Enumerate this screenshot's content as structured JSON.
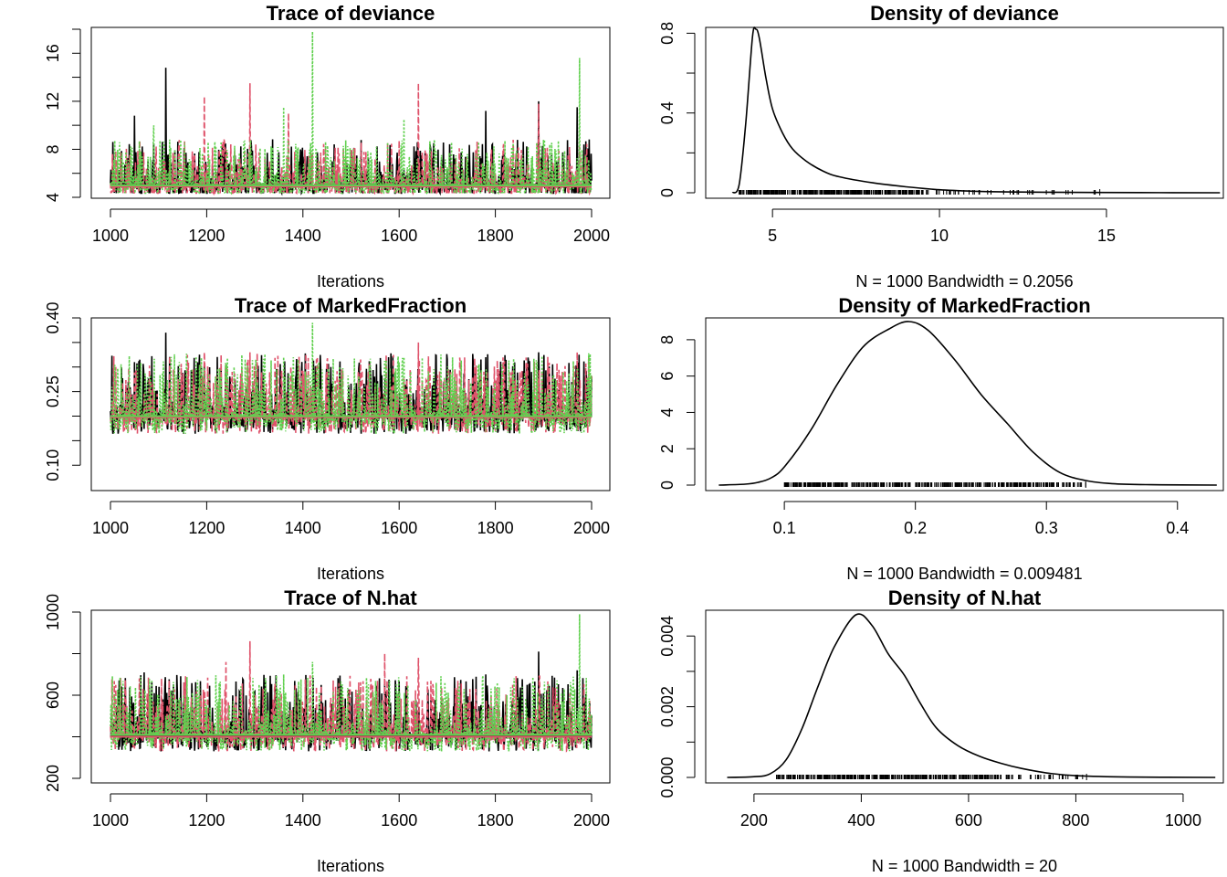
{
  "chart_data": [
    {
      "type": "line",
      "title": "Trace of deviance",
      "xlabel": "Iterations",
      "ylabel": "",
      "xlim": [
        1000,
        2000
      ],
      "ylim": [
        4,
        18
      ],
      "xticks": [
        1000,
        1200,
        1400,
        1600,
        1800,
        2000
      ],
      "yticks": [
        4,
        8,
        12,
        16
      ],
      "yticks_minor": [
        6,
        10,
        14,
        18
      ],
      "series": [
        {
          "color": "#000000",
          "dash": "solid",
          "base": 5.0,
          "spread": 1.2,
          "max": 14.8,
          "peaks": [
            [
              1115,
              14.8
            ],
            [
              1890,
              12.0
            ],
            [
              1970,
              11.5
            ],
            [
              1780,
              11.2
            ],
            [
              1050,
              10.8
            ]
          ]
        },
        {
          "color": "#DF536B",
          "dash": "dashed",
          "base": 5.0,
          "spread": 1.2,
          "max": 13.5,
          "peaks": [
            [
              1290,
              13.5
            ],
            [
              1640,
              13.5
            ],
            [
              1195,
              12.4
            ],
            [
              1890,
              11.8
            ],
            [
              1370,
              11.0
            ]
          ]
        },
        {
          "color": "#61D04F",
          "dash": "dotted",
          "base": 5.0,
          "spread": 1.2,
          "max": 17.8,
          "peaks": [
            [
              1420,
              17.8
            ],
            [
              1975,
              15.6
            ],
            [
              1360,
              11.5
            ],
            [
              1610,
              10.5
            ],
            [
              1090,
              10.0
            ]
          ]
        }
      ],
      "smooth": [
        {
          "color": "#000000",
          "y": 5.0
        },
        {
          "color": "#DF536B",
          "y": 4.9
        },
        {
          "color": "#61D04F",
          "y": 5.0
        }
      ]
    },
    {
      "type": "line",
      "title": "Density of deviance",
      "xlabel": "N = 1000   Bandwidth = 0.2056",
      "ylabel": "",
      "xlim": [
        3.0,
        18.5
      ],
      "ylim": [
        0,
        0.82
      ],
      "xticks": [
        5,
        10,
        15
      ],
      "yticks": [
        0.0,
        0.4,
        0.8
      ],
      "yticks_minor": [
        0.2,
        0.6
      ],
      "curve": {
        "x": [
          3.8,
          4.0,
          4.2,
          4.4,
          4.5,
          4.6,
          4.8,
          5.0,
          5.3,
          5.6,
          6.0,
          6.5,
          7.0,
          8.0,
          9.0,
          10.0,
          11.0,
          12.0,
          14.0,
          16.0,
          18.4
        ],
        "y": [
          0.0,
          0.04,
          0.35,
          0.78,
          0.82,
          0.78,
          0.58,
          0.42,
          0.3,
          0.22,
          0.16,
          0.11,
          0.08,
          0.05,
          0.03,
          0.015,
          0.008,
          0.004,
          0.002,
          0.001,
          0.0
        ]
      },
      "rug": {
        "from": 4.0,
        "to": 14.8,
        "dense_to": 9.5
      }
    },
    {
      "type": "line",
      "title": "Trace of MarkedFraction",
      "xlabel": "Iterations",
      "ylabel": "",
      "xlim": [
        1000,
        2000
      ],
      "ylim": [
        0.08,
        0.4
      ],
      "xticks": [
        1000,
        1200,
        1400,
        1600,
        1800,
        2000
      ],
      "yticks": [
        0.1,
        0.25,
        0.4
      ],
      "yticks_labels": [
        "0.10",
        "0.25",
        "0.40"
      ],
      "yticks_minor": [
        0.15,
        0.2,
        0.3,
        0.35
      ],
      "series": [
        {
          "color": "#000000",
          "dash": "solid",
          "base": 0.2,
          "spread": 0.04,
          "max": 0.37,
          "peaks": [
            [
              1115,
              0.37
            ],
            [
              1890,
              0.33
            ],
            [
              1780,
              0.32
            ],
            [
              1050,
              0.31
            ]
          ]
        },
        {
          "color": "#DF536B",
          "dash": "dashed",
          "base": 0.2,
          "spread": 0.04,
          "max": 0.35,
          "peaks": [
            [
              1640,
              0.35
            ],
            [
              1195,
              0.33
            ],
            [
              1290,
              0.33
            ],
            [
              1970,
              0.33
            ]
          ]
        },
        {
          "color": "#61D04F",
          "dash": "dotted",
          "base": 0.2,
          "spread": 0.04,
          "max": 0.39,
          "peaks": [
            [
              1420,
              0.39
            ],
            [
              1360,
              0.32
            ],
            [
              1610,
              0.32
            ]
          ]
        }
      ],
      "smooth": [
        {
          "color": "#000000",
          "y": 0.2
        },
        {
          "color": "#DF536B",
          "y": 0.198
        },
        {
          "color": "#61D04F",
          "y": 0.2
        }
      ]
    },
    {
      "type": "line",
      "title": "Density of MarkedFraction",
      "xlabel": "N = 1000   Bandwidth = 0.009481",
      "ylabel": "",
      "xlim": [
        0.04,
        0.435
      ],
      "ylim": [
        0,
        9
      ],
      "xticks": [
        0.1,
        0.2,
        0.3,
        0.4
      ],
      "yticks": [
        0,
        2,
        4,
        6,
        8
      ],
      "curve": {
        "x": [
          0.05,
          0.07,
          0.08,
          0.09,
          0.1,
          0.12,
          0.14,
          0.16,
          0.18,
          0.195,
          0.21,
          0.23,
          0.25,
          0.27,
          0.29,
          0.31,
          0.33,
          0.35,
          0.38,
          0.43
        ],
        "y": [
          0.0,
          0.05,
          0.15,
          0.4,
          1.0,
          3.0,
          5.5,
          7.6,
          8.6,
          9.0,
          8.5,
          6.9,
          5.0,
          3.4,
          1.8,
          0.7,
          0.25,
          0.08,
          0.02,
          0.0
        ]
      },
      "rug": {
        "from": 0.1,
        "to": 0.33,
        "dense_to": 0.3
      }
    },
    {
      "type": "line",
      "title": "Trace of N.hat",
      "xlabel": "Iterations",
      "ylabel": "",
      "xlim": [
        1000,
        2000
      ],
      "ylim": [
        200,
        1000
      ],
      "xticks": [
        1000,
        1200,
        1400,
        1600,
        1800,
        2000
      ],
      "yticks": [
        200,
        600,
        1000
      ],
      "yticks_minor": [
        400,
        800
      ],
      "series": [
        {
          "color": "#000000",
          "dash": "solid",
          "base": 410,
          "spread": 90,
          "max": 810,
          "peaks": [
            [
              1890,
              810
            ],
            [
              1970,
              720
            ],
            [
              1070,
              710
            ],
            [
              1780,
              700
            ]
          ]
        },
        {
          "color": "#DF536B",
          "dash": "dashed",
          "base": 410,
          "spread": 90,
          "max": 860,
          "peaks": [
            [
              1290,
              860
            ],
            [
              1570,
              800
            ],
            [
              1640,
              780
            ],
            [
              1240,
              760
            ]
          ]
        },
        {
          "color": "#61D04F",
          "dash": "dotted",
          "base": 410,
          "spread": 90,
          "max": 990,
          "peaks": [
            [
              1975,
              990
            ],
            [
              1420,
              760
            ],
            [
              1360,
              700
            ]
          ]
        }
      ],
      "smooth": [
        {
          "color": "#000000",
          "y": 405
        },
        {
          "color": "#DF536B",
          "y": 400
        },
        {
          "color": "#61D04F",
          "y": 410
        }
      ]
    },
    {
      "type": "line",
      "title": "Density of N.hat",
      "xlabel": "N = 1000   Bandwidth = 20",
      "ylabel": "",
      "xlim": [
        110,
        1075
      ],
      "ylim": [
        0,
        0.0046
      ],
      "xticks": [
        200,
        400,
        600,
        800,
        1000
      ],
      "yticks": [
        0.0,
        0.002,
        0.004
      ],
      "yticks_labels": [
        "0.000",
        "0.002",
        "0.004"
      ],
      "yticks_minor": [
        0.001,
        0.003
      ],
      "curve": {
        "x": [
          150,
          200,
          230,
          260,
          290,
          320,
          350,
          390,
          420,
          450,
          480,
          510,
          540,
          580,
          620,
          660,
          700,
          750,
          800,
          900,
          1060
        ],
        "y": [
          0.0,
          2e-05,
          0.0001,
          0.0005,
          0.0014,
          0.0026,
          0.0037,
          0.0046,
          0.0043,
          0.0035,
          0.0029,
          0.0021,
          0.0014,
          0.0009,
          0.0006,
          0.0004,
          0.00025,
          0.00012,
          5e-05,
          1e-05,
          0.0
        ]
      },
      "rug": {
        "from": 240,
        "to": 820,
        "dense_to": 660
      }
    }
  ]
}
